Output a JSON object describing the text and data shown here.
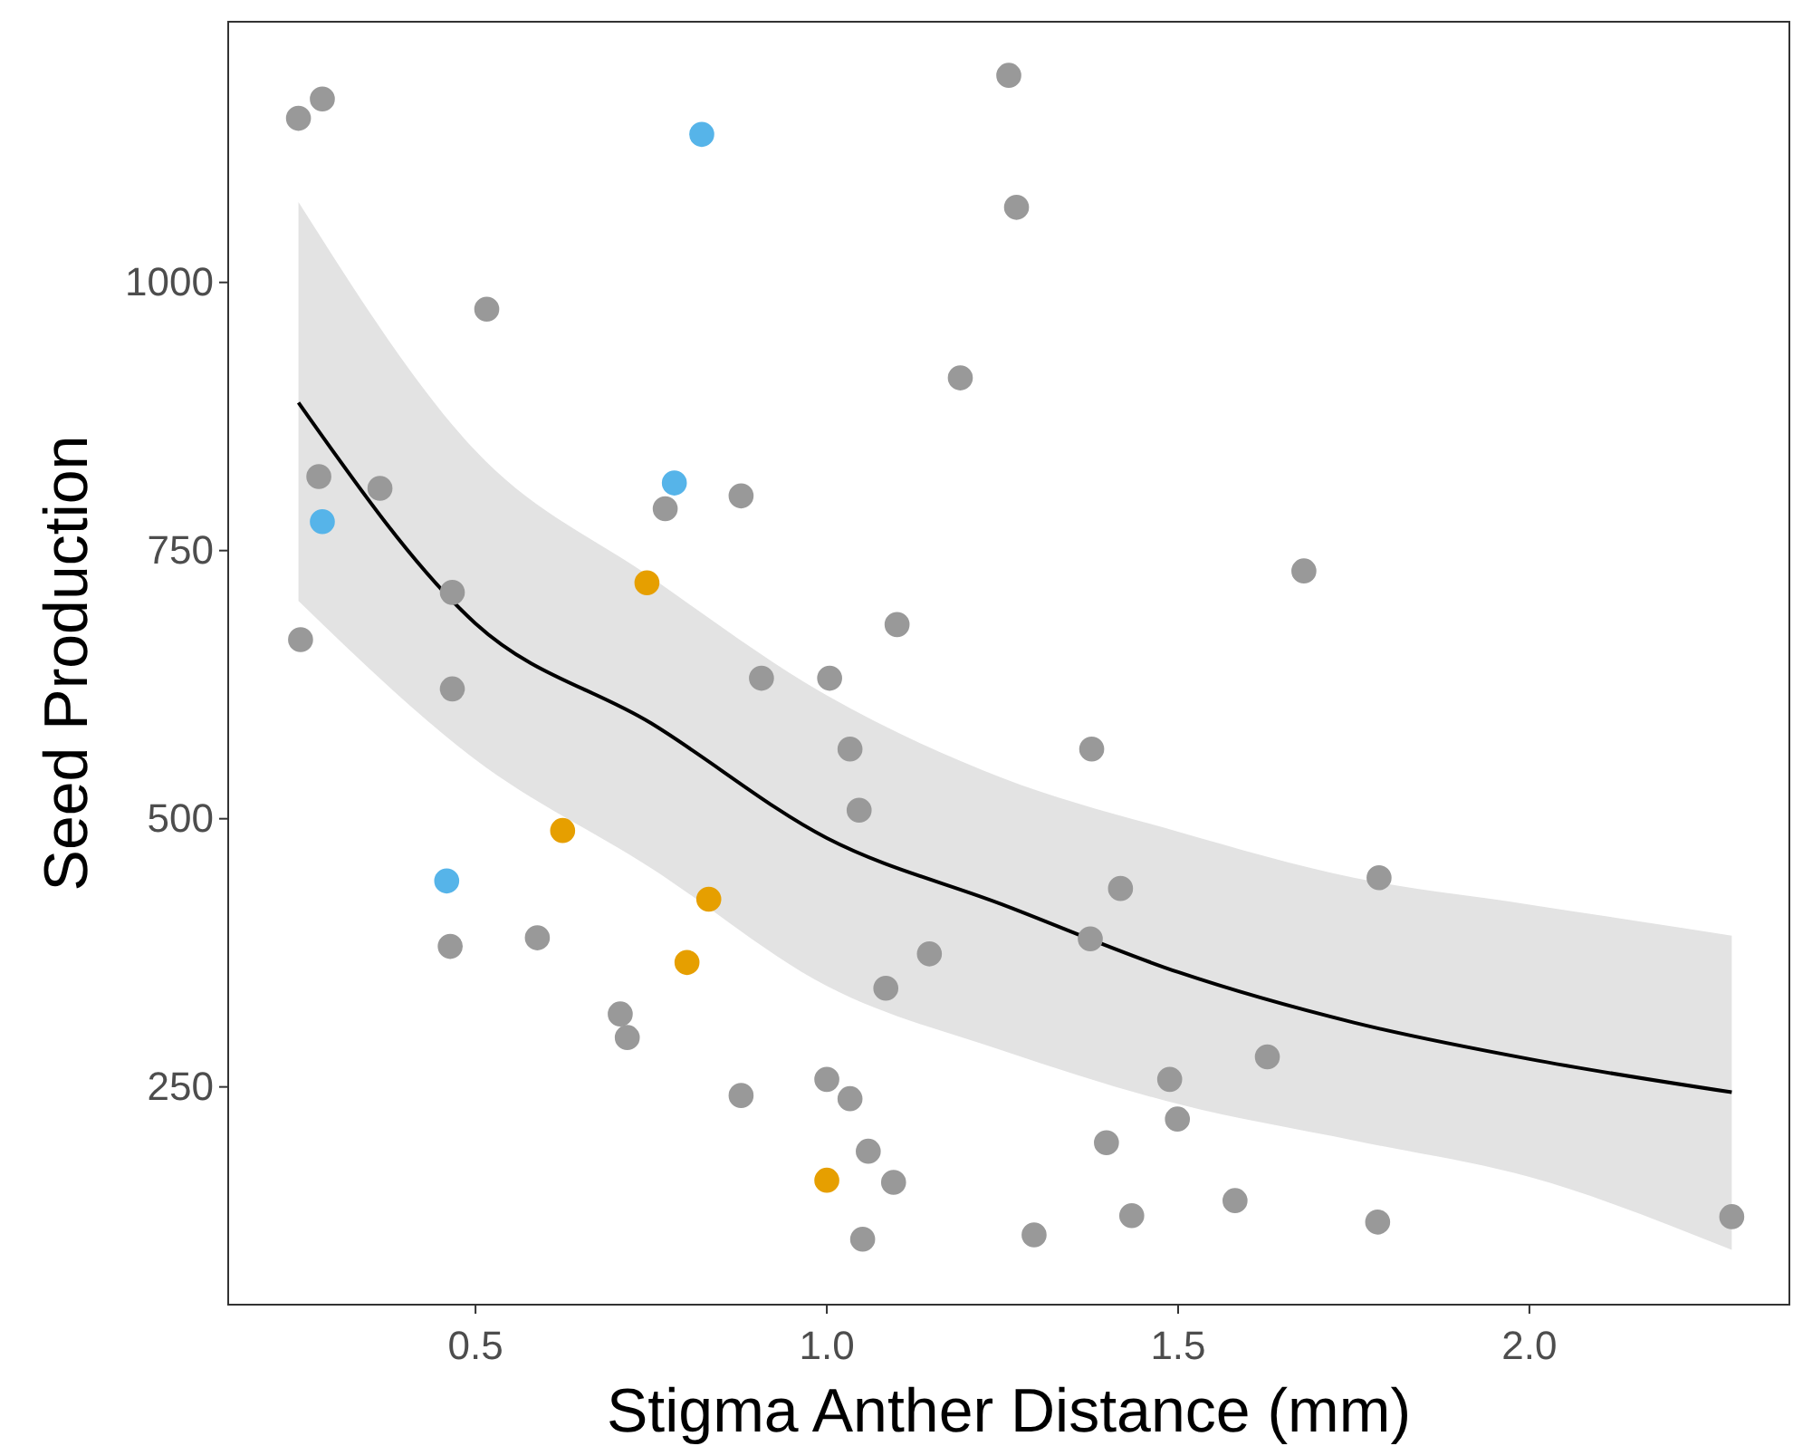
{
  "chart_data": {
    "type": "scatter",
    "xlabel": "Stigma Anther Distance (mm)",
    "ylabel": "Seed Production",
    "xlim": [
      0.148,
      2.37
    ],
    "ylim": [
      47,
      1243
    ],
    "xticks": [
      0.5,
      {
        "value": 1,
        "label": "1.0"
      },
      1.5,
      {
        "value": 2,
        "label": "2.0"
      }
    ],
    "yticks": [
      250,
      500,
      750,
      1000
    ],
    "grid": false,
    "marker": "circle",
    "series": [
      {
        "type": "line",
        "marker": "none",
        "color": "#000000",
        "x": [
          0.248,
          0.5,
          0.75,
          1.0,
          1.25,
          1.5,
          1.75,
          2.0,
          2.288
        ],
        "values": [
          888,
          682,
          589,
          482,
          420,
          357,
          310,
          276,
          245
        ],
        "lower": [
          703,
          555,
          454,
          344,
          284,
          234,
          200,
          166,
          98
        ],
        "upper": [
          1075,
          843,
          725,
          615,
          538,
          488,
          445,
          420,
          391
        ]
      },
      {
        "color": "#999999",
        "x": [
          0.248,
          0.282,
          1.259,
          1.27,
          0.516,
          1.19,
          0.277,
          0.364,
          0.251,
          0.467,
          0.467,
          0.77,
          0.878,
          1.679,
          1.1,
          0.907,
          1.004,
          1.033,
          1.046,
          1.377,
          1.418,
          1.375,
          1.146,
          1.084,
          1.786,
          0.464,
          0.588,
          0.706,
          0.716,
          0.878,
          1.0,
          1.033,
          1.059,
          1.095,
          1.051,
          1.295,
          1.398,
          1.488,
          1.499,
          1.434,
          1.627,
          1.581,
          1.784,
          2.288
        ],
        "values": [
          1153,
          1171,
          1193,
          1070,
          975,
          911,
          819,
          808,
          667,
          711,
          621,
          789,
          801,
          731,
          681,
          631,
          631,
          565,
          508,
          565,
          435,
          388,
          374,
          342,
          445,
          381,
          389,
          318,
          296,
          242,
          257,
          239,
          190,
          161,
          108,
          112,
          198,
          257,
          220,
          130,
          278,
          144,
          124,
          129
        ]
      },
      {
        "color": "#56b4e9",
        "x": [
          0.822,
          0.783,
          0.282,
          0.459
        ],
        "values": [
          1138,
          813,
          777,
          442
        ]
      },
      {
        "color": "#e69f00",
        "x": [
          0.744,
          0.624,
          0.832,
          0.801,
          1.0
        ],
        "values": [
          720,
          489,
          425,
          366,
          163
        ]
      }
    ]
  }
}
